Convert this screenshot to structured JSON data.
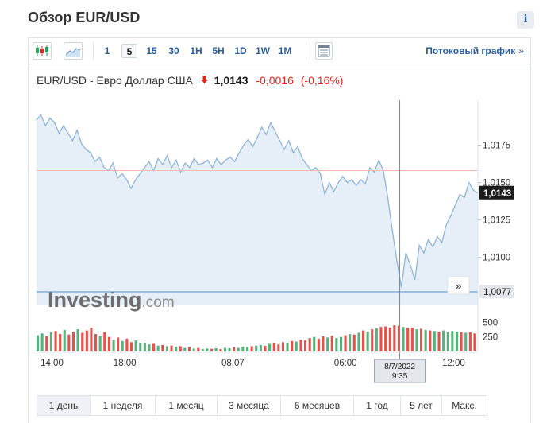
{
  "page": {
    "title": "Обзор EUR/USD",
    "info_label": "i"
  },
  "toolbar": {
    "intervals": [
      "1",
      "5",
      "15",
      "30",
      "1H",
      "5H",
      "1D",
      "1W",
      "1M"
    ],
    "active_interval": "5",
    "stream_link": "Потоковый график",
    "stream_chevron": "»",
    "icons": [
      "candlestick-icon",
      "area-chart-icon",
      "table-icon"
    ]
  },
  "quote": {
    "name": "EUR/USD - Евро Доллар США",
    "direction": "down",
    "arrow": "🡇",
    "price": "1,0143",
    "change": "-0,0016",
    "change_pct": "(-0,16%)"
  },
  "chart_data": {
    "type": "area",
    "title": "EUR/USD - Евро Доллар США",
    "interval": "5",
    "ylim": [
      1.0068,
      1.0205
    ],
    "y_ticks": [
      "1,0175",
      "1,0150",
      "1,0125",
      "1,0100"
    ],
    "x_ticks": [
      "14:00",
      "18:00",
      "08.07",
      "06:00",
      "12:00"
    ],
    "last_price": "1,0143",
    "crosshair_price": "1,0077",
    "crosshair_time": [
      "8/7/2022",
      "9:35"
    ],
    "reference_price": 1.0158,
    "volume_ticks": [
      "500",
      "250"
    ],
    "price_series": [
      1.0192,
      1.0195,
      1.0188,
      1.0193,
      1.019,
      1.0183,
      1.0188,
      1.0183,
      1.0178,
      1.0185,
      1.0176,
      1.0172,
      1.017,
      1.0164,
      1.0167,
      1.016,
      1.0158,
      1.0163,
      1.0153,
      1.0156,
      1.0152,
      1.0146,
      1.0152,
      1.0156,
      1.016,
      1.0164,
      1.0158,
      1.0166,
      1.0162,
      1.0168,
      1.016,
      1.0165,
      1.0157,
      1.0163,
      1.016,
      1.0166,
      1.0162,
      1.0163,
      1.0165,
      1.016,
      1.0166,
      1.0162,
      1.0165,
      1.0167,
      1.0164,
      1.017,
      1.0175,
      1.0179,
      1.0174,
      1.018,
      1.0187,
      1.0182,
      1.019,
      1.0184,
      1.0178,
      1.0172,
      1.0178,
      1.017,
      1.0174,
      1.0166,
      1.0162,
      1.0158,
      1.016,
      1.0156,
      1.0142,
      1.015,
      1.0144,
      1.015,
      1.0154,
      1.015,
      1.0152,
      1.0148,
      1.0152,
      1.0149,
      1.016,
      1.0157,
      1.0165,
      1.0158,
      1.014,
      1.0118,
      1.0098,
      1.008,
      1.0103,
      1.0095,
      1.0085,
      1.0108,
      1.0103,
      1.0112,
      1.0107,
      1.0114,
      1.011,
      1.0122,
      1.0128,
      1.0135,
      1.0142,
      1.014,
      1.015,
      1.0145,
      1.0143
    ],
    "volume_series": [
      280,
      310,
      260,
      330,
      350,
      300,
      370,
      290,
      340,
      380,
      320,
      360,
      410,
      300,
      270,
      330,
      250,
      200,
      240,
      180,
      220,
      160,
      190,
      140,
      150,
      120,
      130,
      100,
      110,
      90,
      100,
      80,
      90,
      60,
      70,
      50,
      60,
      40,
      50,
      45,
      55,
      40,
      60,
      55,
      70,
      60,
      80,
      75,
      90,
      100,
      110,
      95,
      130,
      140,
      120,
      160,
      150,
      180,
      170,
      200,
      190,
      230,
      250,
      220,
      260,
      240,
      270,
      230,
      250,
      280,
      300,
      290,
      320,
      360,
      340,
      380,
      400,
      420,
      430,
      410,
      450,
      440,
      420,
      400,
      410,
      380,
      390,
      370,
      360,
      350,
      340,
      360,
      330,
      350,
      340,
      330,
      320,
      330,
      310
    ],
    "volume_ylim": [
      0,
      600
    ]
  },
  "watermark": {
    "brand": "Investing",
    "suffix": ".com"
  },
  "range_buttons": [
    "1 день",
    "1 неделя",
    "1 месяц",
    "3 месяца",
    "6 месяцев",
    "1 год",
    "5 лет",
    "Макс."
  ],
  "active_range": "1 день",
  "scroll_button": "»",
  "colors": {
    "accent": "#2a5d9e",
    "down": "#e0261f",
    "up": "#2ca05a",
    "line": "#8fb4d8",
    "area": "#e6eef7",
    "crosshair": "#5b8fc4",
    "reference": "#f2b8b2"
  }
}
